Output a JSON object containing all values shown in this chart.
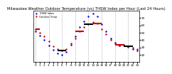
{
  "title": "Milwaukee Weather Outdoor Temperature (vs) THSW Index per Hour (Last 24 Hours)",
  "title_fontsize": 3.8,
  "bg_color": "#ffffff",
  "grid_color": "#aaaaaa",
  "xlabel_fontsize": 3.0,
  "ylabel_fontsize": 3.0,
  "hours": [
    0,
    1,
    2,
    3,
    4,
    5,
    6,
    7,
    8,
    9,
    10,
    11,
    12,
    13,
    14,
    15,
    16,
    17,
    18,
    19,
    20,
    21,
    22,
    23
  ],
  "temp": [
    55,
    50,
    45,
    38,
    32,
    28,
    26,
    28,
    35,
    42,
    52,
    58,
    62,
    65,
    63,
    55,
    48,
    40,
    35,
    33,
    34,
    32,
    30,
    28
  ],
  "thsw": [
    52,
    46,
    40,
    33,
    27,
    22,
    20,
    24,
    34,
    45,
    58,
    66,
    72,
    76,
    72,
    62,
    52,
    42,
    36,
    33,
    34,
    31,
    28,
    26
  ],
  "temp_color": "#cc0000",
  "thsw_color": "#0000cc",
  "black_color": "#000000",
  "ylim_min": 10,
  "ylim_max": 80,
  "yticks": [
    20,
    30,
    40,
    50,
    60,
    70
  ],
  "ytick_labels": [
    "20",
    "30",
    "40",
    "50",
    "60",
    "70"
  ],
  "xtick_hours": [
    0,
    1,
    2,
    3,
    4,
    5,
    6,
    7,
    8,
    9,
    10,
    11,
    12,
    13,
    14,
    15,
    16,
    17,
    18,
    19,
    20,
    21,
    22,
    23
  ],
  "xtick_labels": [
    "0",
    "1",
    "2",
    "3",
    "4",
    "5",
    "6",
    "7",
    "8",
    "9",
    "10",
    "11",
    "12",
    "13",
    "14",
    "15",
    "16",
    "17",
    "18",
    "19",
    "20",
    "21",
    "22",
    "23"
  ],
  "legend_temp": "Outdoor Temp",
  "legend_thsw": "THSW Index",
  "legend_fontsize": 2.5,
  "grid_hours": [
    0,
    3,
    6,
    9,
    12,
    15,
    18,
    21
  ]
}
